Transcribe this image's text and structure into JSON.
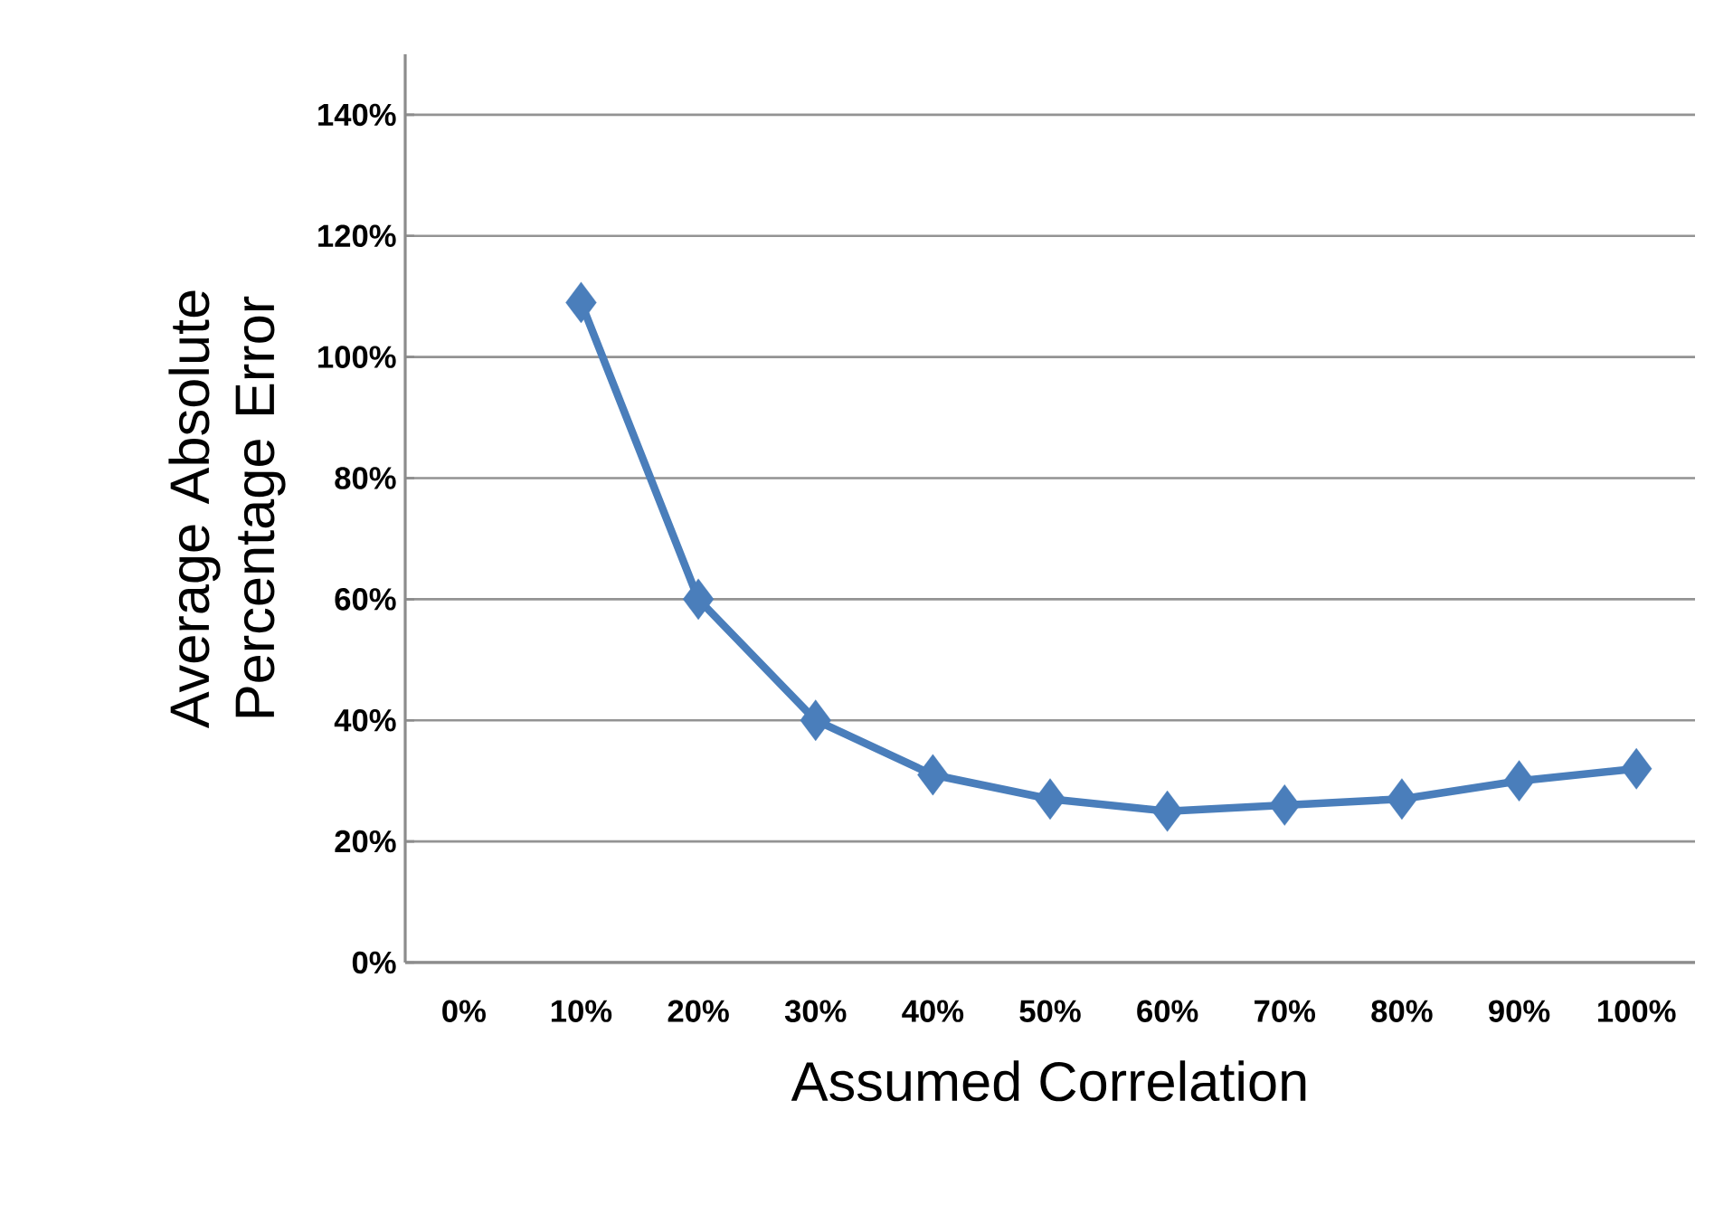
{
  "chart_data": {
    "type": "line",
    "xlabel": "Assumed Correlation",
    "ylabel": "Average Absolute Percentage Error",
    "categories": [
      "0%",
      "10%",
      "20%",
      "30%",
      "40%",
      "50%",
      "60%",
      "70%",
      "80%",
      "90%",
      "100%"
    ],
    "series": [
      {
        "color": "#4a7ebb",
        "values": [
          null,
          109,
          60,
          40,
          31,
          27,
          25,
          26,
          27,
          30,
          32
        ]
      }
    ],
    "ylim": [
      0,
      150
    ],
    "yticks": [
      {
        "value": 0,
        "label": "0%"
      },
      {
        "value": 20,
        "label": "20%"
      },
      {
        "value": 40,
        "label": "40%"
      },
      {
        "value": 60,
        "label": "60%"
      },
      {
        "value": 80,
        "label": "80%"
      },
      {
        "value": 100,
        "label": "100%"
      },
      {
        "value": 120,
        "label": "120%"
      },
      {
        "value": 140,
        "label": "140%"
      }
    ],
    "grid": "y",
    "marker": "diamond",
    "line_style": "solid"
  }
}
